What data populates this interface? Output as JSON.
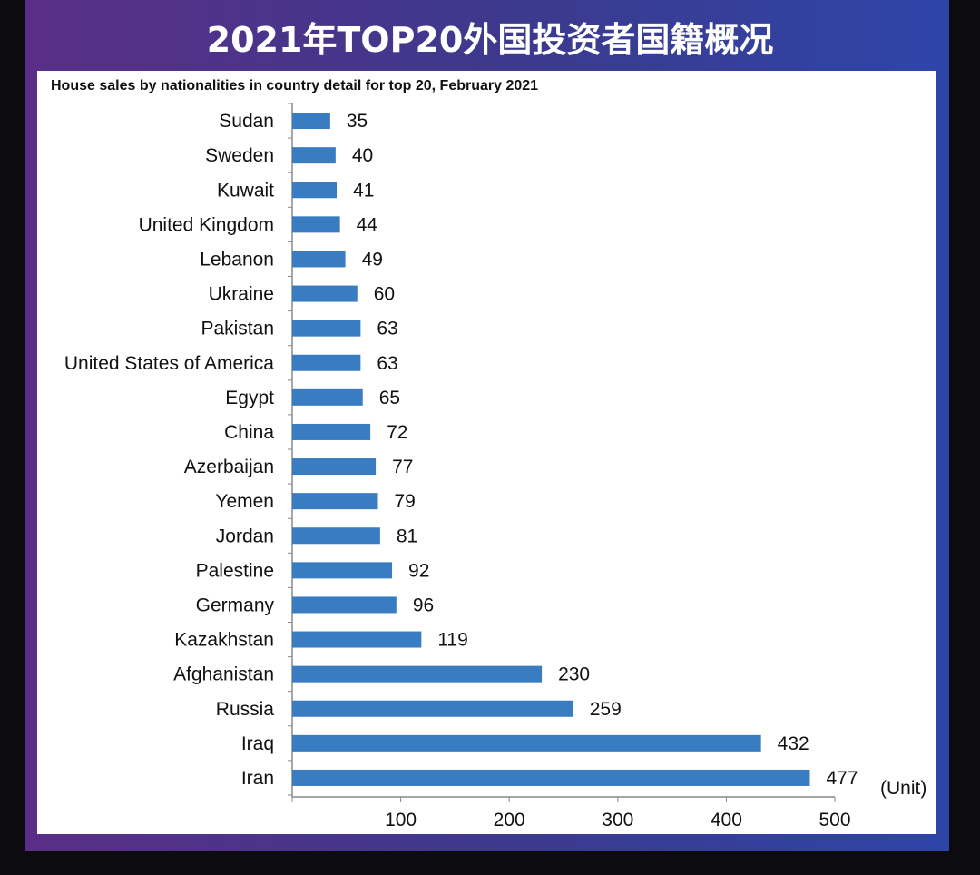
{
  "banner": {
    "title": "2021年TOP20外国投资者国籍概况"
  },
  "chart_data": {
    "type": "bar",
    "orientation": "horizontal",
    "title": "House sales by nationalities in country detail for top 20, February 2021",
    "categories": [
      "Sudan",
      "Sweden",
      "Kuwait",
      "United Kingdom",
      "Lebanon",
      "Ukraine",
      "Pakistan",
      "United States of America",
      "Egypt",
      "China",
      "Azerbaijan",
      "Yemen",
      "Jordan",
      "Palestine",
      "Germany",
      "Kazakhstan",
      "Afghanistan",
      "Russia",
      "Iraq",
      "Iran"
    ],
    "values": [
      35,
      40,
      41,
      44,
      49,
      60,
      63,
      63,
      65,
      72,
      77,
      79,
      81,
      92,
      96,
      119,
      230,
      259,
      432,
      477
    ],
    "xlim": [
      0,
      500
    ],
    "xticks": [
      100,
      200,
      300,
      400,
      500
    ],
    "unit_label": "(Unit)",
    "bar_color": "#3a7cc2",
    "data_labels": true,
    "grid": false
  }
}
